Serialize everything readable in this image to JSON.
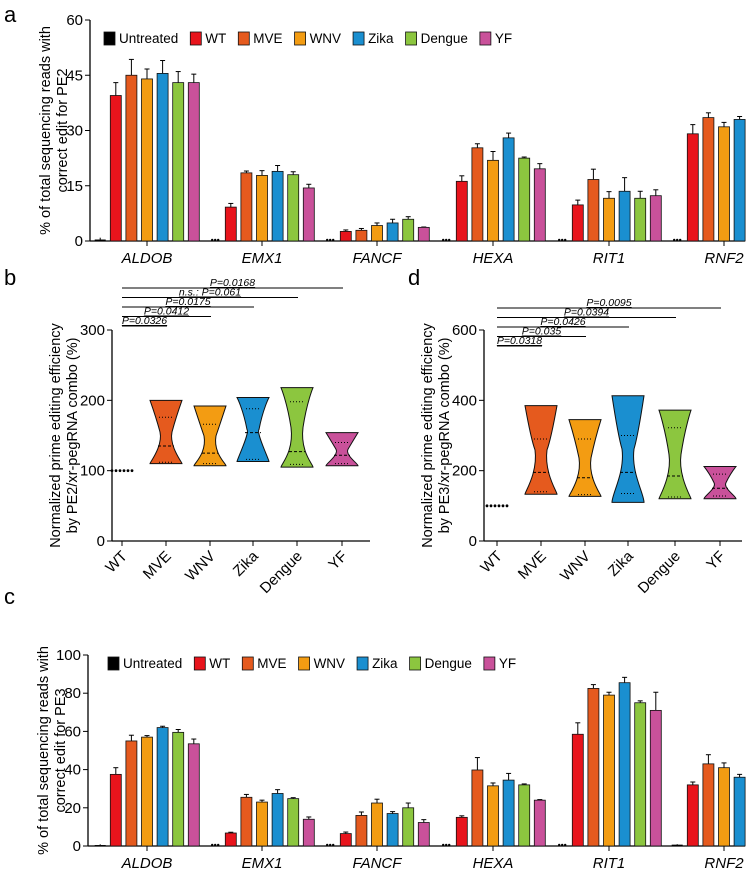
{
  "colors": {
    "Untreated": "#000000",
    "WT": "#e8141c",
    "MVE": "#e55a1e",
    "WNV": "#f39c12",
    "Zika": "#1a8fd0",
    "Dengue": "#8cc63f",
    "YF": "#c9519a"
  },
  "chart_data": [
    {
      "panel": "a",
      "type": "bar",
      "ylabel": "% of total sequencing reads with correct edit for PE2",
      "ylim": [
        0,
        60
      ],
      "yticks": [
        0,
        15,
        30,
        45,
        60
      ],
      "categories": [
        "ALDOB",
        "EMX1",
        "FANCF",
        "HEXA",
        "RIT1",
        "RNF2"
      ],
      "legend": "top",
      "series": [
        {
          "name": "Untreated",
          "values": [
            0.4,
            0,
            0,
            0.2,
            0,
            0
          ],
          "err": [
            0.5,
            0,
            0,
            0.1,
            0,
            0
          ]
        },
        {
          "name": "WT",
          "values": [
            39.5,
            9.2,
            2.6,
            16.2,
            9.8,
            29.1
          ],
          "err": [
            3.5,
            1.0,
            0.4,
            1.5,
            1.3,
            2.5
          ]
        },
        {
          "name": "MVE",
          "values": [
            45.0,
            18.5,
            2.9,
            25.3,
            16.7,
            33.5
          ],
          "err": [
            4.3,
            0.5,
            0.5,
            1.1,
            2.8,
            1.3
          ]
        },
        {
          "name": "WNV",
          "values": [
            44.0,
            17.8,
            4.2,
            21.9,
            11.6,
            31.0
          ],
          "err": [
            2.7,
            1.3,
            0.7,
            2.4,
            1.8,
            1.2
          ]
        },
        {
          "name": "Zika",
          "values": [
            45.5,
            18.9,
            4.9,
            28.0,
            13.5,
            33.0
          ],
          "err": [
            3.5,
            1.6,
            1.0,
            1.3,
            3.7,
            0.8
          ]
        },
        {
          "name": "Dengue",
          "values": [
            43.0,
            18.0,
            5.9,
            22.5,
            11.6,
            30.7
          ],
          "err": [
            3.0,
            0.8,
            0.7,
            0.3,
            1.9,
            2.1
          ]
        },
        {
          "name": "YF",
          "values": [
            43.0,
            14.4,
            3.7,
            19.6,
            12.3,
            31.4
          ],
          "err": [
            2.3,
            1.0,
            0.1,
            1.4,
            1.6,
            1.0
          ]
        }
      ]
    },
    {
      "panel": "b",
      "type": "violin",
      "ylabel": "Normalized prime editing efficiency by PE2/xr-pegRNA combo (%)",
      "ylim": [
        0,
        300
      ],
      "yticks": [
        0,
        100,
        200,
        300
      ],
      "categories": [
        "WT",
        "MVE",
        "WNV",
        "Zika",
        "Dengue",
        "YF"
      ],
      "stats": [
        {
          "min": 100,
          "q1": 100,
          "median": 100,
          "q3": 100,
          "max": 100
        },
        {
          "min": 110,
          "q1": 112,
          "median": 135,
          "q3": 176,
          "max": 200
        },
        {
          "min": 107,
          "q1": 110,
          "median": 125,
          "q3": 166,
          "max": 192
        },
        {
          "min": 113,
          "q1": 116,
          "median": 154,
          "q3": 188,
          "max": 204
        },
        {
          "min": 105,
          "q1": 109,
          "median": 127,
          "q3": 198,
          "max": 218
        },
        {
          "min": 107,
          "q1": 110,
          "median": 122,
          "q3": 140,
          "max": 154
        }
      ],
      "comparisons": [
        {
          "label": "P=0.0326",
          "from": "WT",
          "to": "MVE"
        },
        {
          "label": "P=0.0412",
          "from": "WT",
          "to": "WNV"
        },
        {
          "label": "P=0.0175",
          "from": "WT",
          "to": "Zika"
        },
        {
          "label": "n.s.: P=0.061",
          "from": "WT",
          "to": "Dengue"
        },
        {
          "label": "P=0.0168",
          "from": "WT",
          "to": "YF"
        }
      ]
    },
    {
      "panel": "d",
      "type": "violin",
      "ylabel": "Normalized prime editing efficiency by PE3/xr-pegRNA combo (%)",
      "ylim": [
        0,
        600
      ],
      "yticks": [
        0,
        200,
        400,
        600
      ],
      "categories": [
        "WT",
        "MVE",
        "WNV",
        "Zika",
        "Dengue",
        "YF"
      ],
      "stats": [
        {
          "min": 100,
          "q1": 100,
          "median": 100,
          "q3": 100,
          "max": 100
        },
        {
          "min": 133,
          "q1": 140,
          "median": 195,
          "q3": 290,
          "max": 385
        },
        {
          "min": 127,
          "q1": 132,
          "median": 180,
          "q3": 290,
          "max": 345
        },
        {
          "min": 110,
          "q1": 135,
          "median": 195,
          "q3": 300,
          "max": 413
        },
        {
          "min": 120,
          "q1": 125,
          "median": 185,
          "q3": 322,
          "max": 372
        },
        {
          "min": 120,
          "q1": 128,
          "median": 150,
          "q3": 190,
          "max": 212
        }
      ],
      "comparisons": [
        {
          "label": "P=0.0318",
          "from": "WT",
          "to": "MVE"
        },
        {
          "label": "P=0.035",
          "from": "WT",
          "to": "WNV"
        },
        {
          "label": "P=0.0426",
          "from": "WT",
          "to": "Zika"
        },
        {
          "label": "P=0.0394",
          "from": "WT",
          "to": "Dengue"
        },
        {
          "label": "P=0.0095",
          "from": "WT",
          "to": "YF"
        }
      ]
    },
    {
      "panel": "c",
      "type": "bar",
      "ylabel": "% of total sequencing reads with correct edit for PE3",
      "ylim": [
        0,
        100
      ],
      "yticks": [
        0,
        20,
        40,
        60,
        80,
        100
      ],
      "categories": [
        "ALDOB",
        "EMX1",
        "FANCF",
        "HEXA",
        "RIT1",
        "RNF2"
      ],
      "legend": "top",
      "series": [
        {
          "name": "Untreated",
          "values": [
            0.5,
            0,
            0,
            0,
            0,
            0.7
          ],
          "err": [
            0.4,
            0,
            0,
            0,
            0,
            0.3
          ]
        },
        {
          "name": "WT",
          "values": [
            37.5,
            6.8,
            6.5,
            15.0,
            58.5,
            32.0
          ],
          "err": [
            3.5,
            0.4,
            0.8,
            0.8,
            6.0,
            1.5
          ]
        },
        {
          "name": "MVE",
          "values": [
            55.0,
            25.5,
            16.0,
            39.8,
            82.5,
            43.0
          ],
          "err": [
            3.0,
            1.5,
            1.8,
            6.5,
            2.0,
            4.8
          ]
        },
        {
          "name": "WNV",
          "values": [
            57.0,
            23.0,
            22.5,
            31.5,
            79.0,
            41.0
          ],
          "err": [
            0.8,
            1.0,
            2.0,
            1.5,
            1.5,
            2.5
          ]
        },
        {
          "name": "Zika",
          "values": [
            62.0,
            27.5,
            17.0,
            34.5,
            85.5,
            36.0
          ],
          "err": [
            0.7,
            2.0,
            1.0,
            3.5,
            2.8,
            1.5
          ]
        },
        {
          "name": "Dengue",
          "values": [
            59.5,
            24.8,
            20.0,
            32.0,
            75.0,
            38.5
          ],
          "err": [
            1.5,
            0.5,
            2.5,
            0.5,
            1.0,
            3.0
          ]
        },
        {
          "name": "YF",
          "values": [
            53.5,
            14.0,
            12.3,
            24.0,
            71.0,
            41.5
          ],
          "err": [
            2.5,
            1.2,
            1.5,
            0.3,
            9.5,
            1.5
          ]
        }
      ]
    }
  ]
}
